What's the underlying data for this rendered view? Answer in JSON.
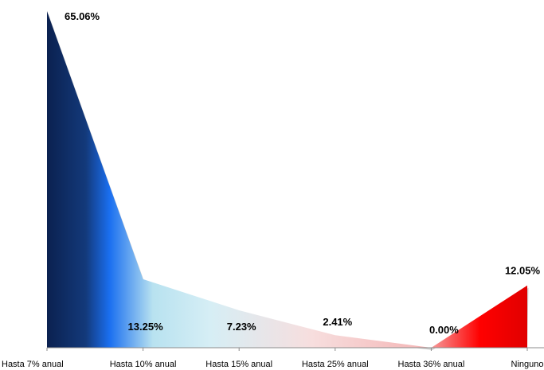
{
  "chart_data": {
    "type": "area",
    "categories": [
      "Hasta 7% anual",
      "Hasta 10% anual",
      "Hasta 15% anual",
      "Hasta 25% anual",
      "Hasta 36% anual",
      "Ninguno"
    ],
    "series": [
      {
        "values": [
          65.06,
          13.25,
          7.23,
          2.41,
          0.0,
          12.05
        ]
      }
    ],
    "data_labels": [
      "65.06%",
      "13.25%",
      "7.23%",
      "2.41%",
      "0.00%",
      "12.05%"
    ],
    "ylim": [
      0,
      65.06
    ],
    "grid": false,
    "legend": "none",
    "colors": {
      "dark_blue": "#0b2150",
      "bright_blue": "#1a6ff0",
      "light_blue": "#b8e2f0",
      "pale_pink": "#f7dede",
      "red": "#ff0000",
      "deep_red": "#e00000",
      "axis": "#8c8c8c"
    }
  }
}
